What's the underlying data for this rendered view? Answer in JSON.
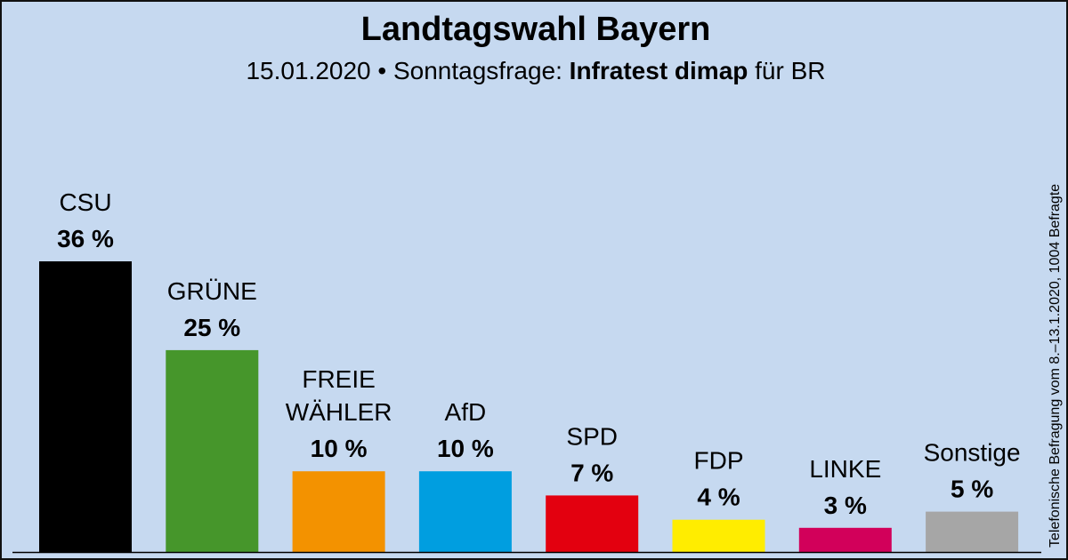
{
  "header": {
    "title": "Landtagswahl Bayern",
    "subtitle_prefix": "15.01.2020 • Sonntagsfrage:",
    "subtitle_institute": "Infratest dimap",
    "subtitle_suffix": "für BR"
  },
  "side_note": "Telefonische Befragung vom 8.–13.1.2020, 1004 Befragte",
  "chart_data": {
    "type": "bar",
    "title": "Landtagswahl Bayern",
    "unit": "%",
    "categories": [
      "CSU",
      "GRÜNE",
      "FREIE WÄHLER",
      "AfD",
      "SPD",
      "FDP",
      "LINKE",
      "Sonstige"
    ],
    "category_lines": [
      [
        "CSU"
      ],
      [
        "GRÜNE"
      ],
      [
        "FREIE",
        "WÄHLER"
      ],
      [
        "AfD"
      ],
      [
        "SPD"
      ],
      [
        "FDP"
      ],
      [
        "LINKE"
      ],
      [
        "Sonstige"
      ]
    ],
    "values": [
      36,
      25,
      10,
      10,
      7,
      4,
      3,
      5
    ],
    "value_labels": [
      "36 %",
      "25 %",
      "10 %",
      "10 %",
      "7 %",
      "4 %",
      "3 %",
      "5 %"
    ],
    "colors": [
      "#000000",
      "#46962b",
      "#f39200",
      "#009ee0",
      "#e3000f",
      "#ffed00",
      "#d2005a",
      "#a6a6a6"
    ],
    "ylim": [
      0,
      36
    ],
    "grid": false,
    "legend": "none",
    "background": "#c6d9f0"
  }
}
